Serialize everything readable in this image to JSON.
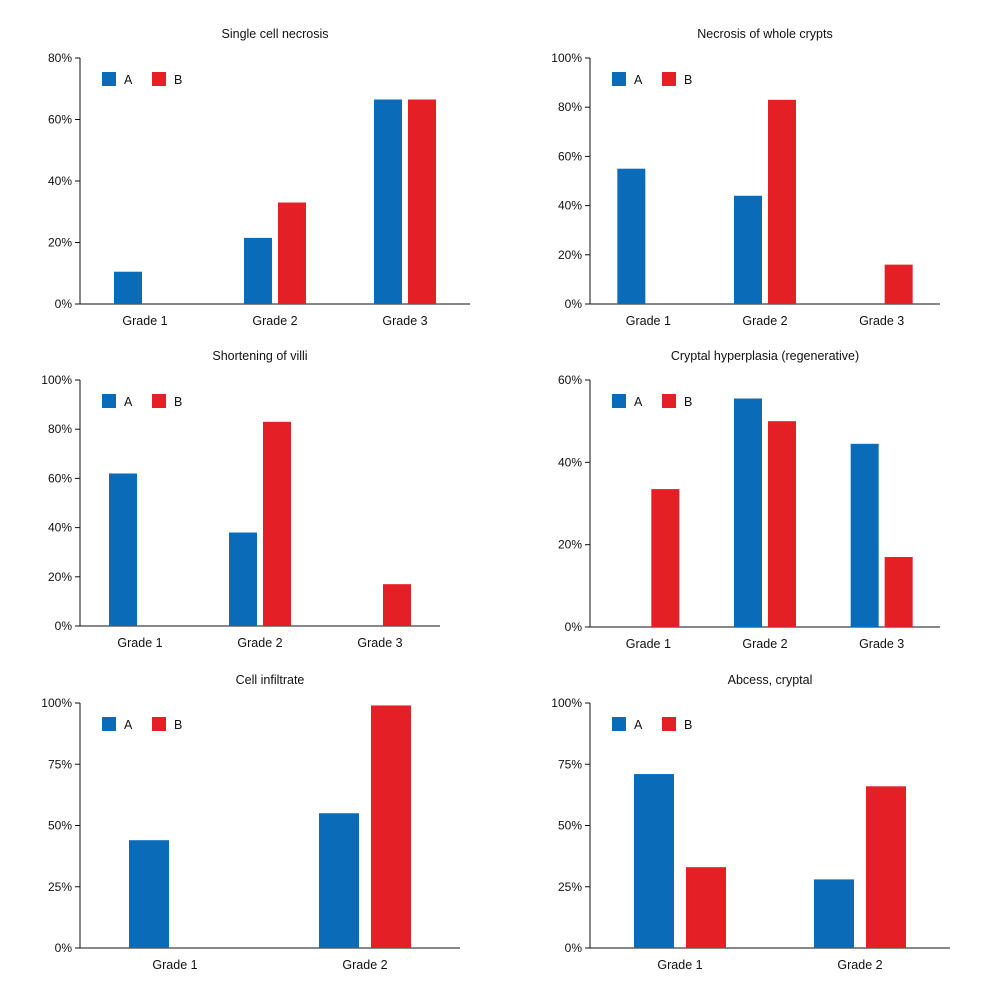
{
  "colors": {
    "A": "#0a6cb8",
    "B": "#e42026",
    "axis": "#111111"
  },
  "legend": [
    "A",
    "B"
  ],
  "chart_data": [
    {
      "type": "bar",
      "title": "Single cell necrosis",
      "categories": [
        "Grade 1",
        "Grade 2",
        "Grade 3"
      ],
      "series": [
        {
          "name": "A",
          "values": [
            10.5,
            21.5,
            66.5
          ]
        },
        {
          "name": "B",
          "values": [
            0,
            33,
            66.5
          ]
        }
      ],
      "ylim": [
        0,
        80
      ],
      "yticks": [
        "0%",
        "20%",
        "40%",
        "60%",
        "80%"
      ],
      "ytick_values": [
        0,
        20,
        40,
        60,
        80
      ],
      "legend_position": "top-left"
    },
    {
      "type": "bar",
      "title": "Necrosis of whole crypts",
      "categories": [
        "Grade 1",
        "Grade 2",
        "Grade 3"
      ],
      "series": [
        {
          "name": "A",
          "values": [
            55,
            44,
            0
          ]
        },
        {
          "name": "B",
          "values": [
            0,
            83,
            16
          ]
        }
      ],
      "ylim": [
        0,
        100
      ],
      "yticks": [
        "0%",
        "20%",
        "40%",
        "60%",
        "80%",
        "100%"
      ],
      "ytick_values": [
        0,
        20,
        40,
        60,
        80,
        100
      ],
      "legend_position": "top-left"
    },
    {
      "type": "bar",
      "title": "Shortening of villi",
      "categories": [
        "Grade 1",
        "Grade 2",
        "Grade 3"
      ],
      "series": [
        {
          "name": "A",
          "values": [
            62,
            38,
            0
          ]
        },
        {
          "name": "B",
          "values": [
            0,
            83,
            17
          ]
        }
      ],
      "ylim": [
        0,
        100
      ],
      "yticks": [
        "0%",
        "20%",
        "40%",
        "60%",
        "80%",
        "100%"
      ],
      "ytick_values": [
        0,
        20,
        40,
        60,
        80,
        100
      ],
      "legend_position": "top-left"
    },
    {
      "type": "bar",
      "title": "Cryptal hyperplasia (regenerative)",
      "categories": [
        "Grade 1",
        "Grade 2",
        "Grade 3"
      ],
      "series": [
        {
          "name": "A",
          "values": [
            0,
            55.5,
            44.5
          ]
        },
        {
          "name": "B",
          "values": [
            33.5,
            50,
            17
          ]
        }
      ],
      "ylim": [
        0,
        60
      ],
      "yticks": [
        "0%",
        "20%",
        "40%",
        "60%"
      ],
      "ytick_values": [
        0,
        20,
        40,
        60
      ],
      "legend_position": "top-left"
    },
    {
      "type": "bar",
      "title": "Cell infiltrate",
      "categories": [
        "Grade 1",
        "Grade 2"
      ],
      "series": [
        {
          "name": "A",
          "values": [
            44,
            55
          ]
        },
        {
          "name": "B",
          "values": [
            0,
            99
          ]
        }
      ],
      "ylim": [
        0,
        100
      ],
      "yticks": [
        "0%",
        "25%",
        "50%",
        "75%",
        "100%"
      ],
      "ytick_values": [
        0,
        25,
        50,
        75,
        100
      ],
      "legend_position": "top-left"
    },
    {
      "type": "bar",
      "title": "Abcess, cryptal",
      "categories": [
        "Grade 1",
        "Grade 2"
      ],
      "series": [
        {
          "name": "A",
          "values": [
            71,
            28
          ]
        },
        {
          "name": "B",
          "values": [
            33,
            66
          ]
        }
      ],
      "ylim": [
        0,
        100
      ],
      "yticks": [
        "0%",
        "25%",
        "50%",
        "75%",
        "100%"
      ],
      "ytick_values": [
        0,
        25,
        50,
        75,
        100
      ],
      "legend_position": "top-left"
    }
  ]
}
